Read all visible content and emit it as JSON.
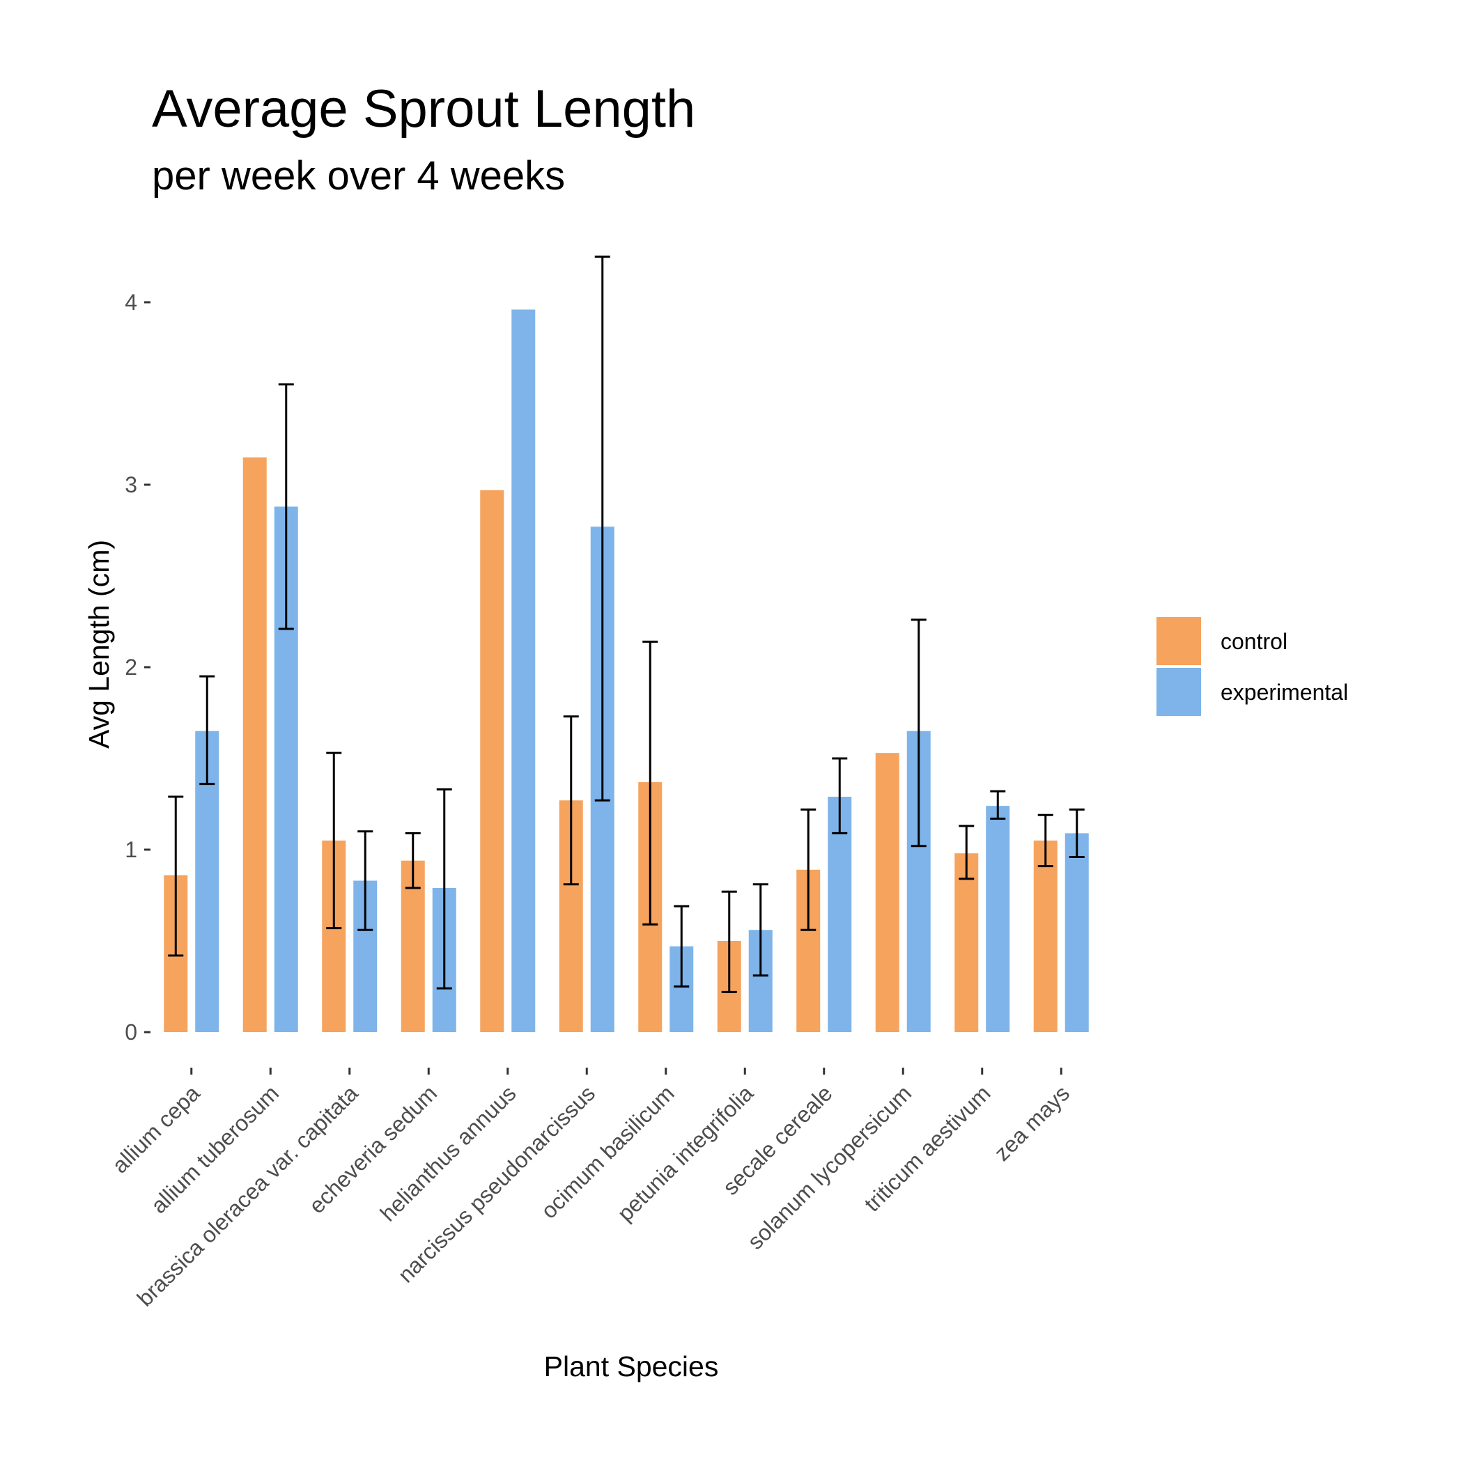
{
  "chart_data": {
    "type": "bar",
    "title": "Average Sprout Length",
    "subtitle": "per week over 4 weeks",
    "xlabel": "Plant Species",
    "ylabel": "Avg Length (cm)",
    "ylim": [
      0,
      4.25
    ],
    "yticks": [
      "0",
      "1",
      "2",
      "3",
      "4"
    ],
    "grid": false,
    "legend_position": "right",
    "categories": [
      "allium cepa",
      "allium tuberosum",
      "brassica oleracea var. capitata",
      "echeveria sedum",
      "helianthus annuus",
      "narcissus pseudonarcissus",
      "ocimum basilicum",
      "petunia integrifolia",
      "secale cereale",
      "solanum lycopersicum",
      "triticum aestivum",
      "zea mays"
    ],
    "series": [
      {
        "name": "control",
        "color": "#F6A35E",
        "values": [
          0.86,
          3.15,
          1.05,
          0.94,
          2.97,
          1.27,
          1.37,
          0.5,
          0.89,
          1.53,
          0.98,
          1.05
        ],
        "error_low": [
          0.42,
          null,
          0.57,
          0.79,
          null,
          0.81,
          0.59,
          0.22,
          0.56,
          null,
          0.84,
          0.91
        ],
        "error_high": [
          1.29,
          null,
          1.53,
          1.09,
          null,
          1.73,
          2.14,
          0.77,
          1.22,
          null,
          1.13,
          1.19
        ]
      },
      {
        "name": "experimental",
        "color": "#7EB4EA",
        "values": [
          1.65,
          2.88,
          0.83,
          0.79,
          3.96,
          2.77,
          0.47,
          0.56,
          1.29,
          1.65,
          1.24,
          1.09
        ],
        "error_low": [
          1.36,
          2.21,
          0.56,
          0.24,
          null,
          1.27,
          0.25,
          0.31,
          1.09,
          1.02,
          1.17,
          0.96
        ],
        "error_high": [
          1.95,
          3.55,
          1.1,
          1.33,
          null,
          4.25,
          0.69,
          0.81,
          1.5,
          2.26,
          1.32,
          1.22
        ]
      }
    ]
  }
}
